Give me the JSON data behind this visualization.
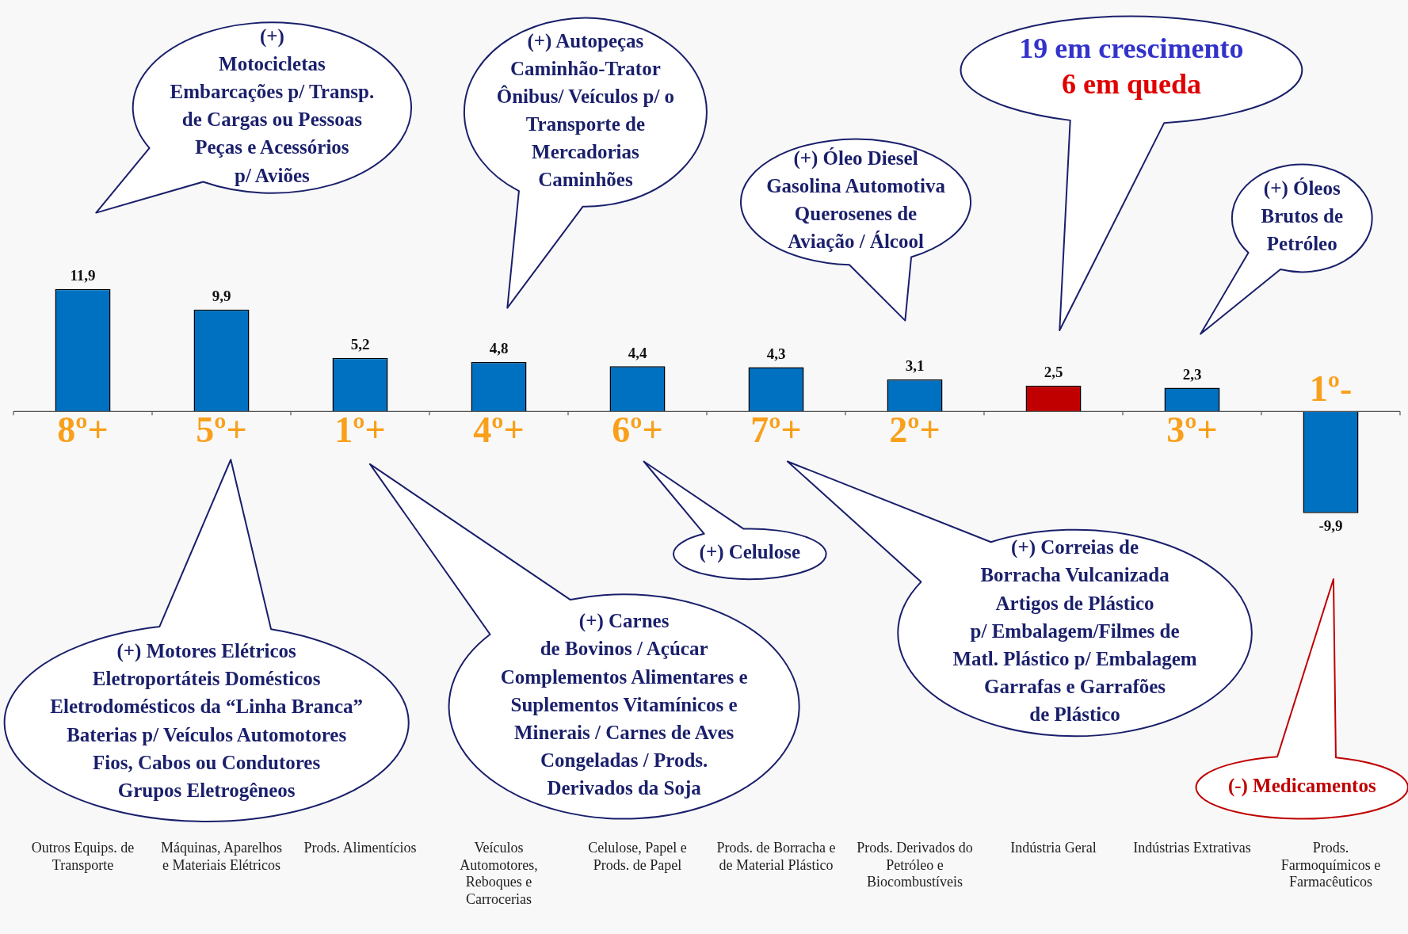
{
  "chart_data": {
    "type": "bar",
    "categories": [
      "Outros Equips. de Transporte",
      "Máquinas, Aparelhos e Materiais Elétricos",
      "Prods. Alimentícios",
      "Veículos Automotores, Reboques e Carrocerias",
      "Celulose, Papel e Prods. de Papel",
      "Prods. de Borracha e de Material Plástico",
      "Prods. Derivados do Petróleo e Biocombustíveis",
      "Indústria Geral",
      "Indústrias Extrativas",
      "Prods. Farmoquímicos e Farmacêuticos"
    ],
    "values": [
      11.9,
      9.9,
      5.2,
      4.8,
      4.4,
      4.3,
      3.1,
      2.5,
      2.3,
      -9.9
    ],
    "value_labels": [
      "11,9",
      "9,9",
      "5,2",
      "4,8",
      "4,4",
      "4,3",
      "3,1",
      "2,5",
      "2,3",
      "-9,9"
    ],
    "colors": [
      "#0070c0",
      "#0070c0",
      "#0070c0",
      "#0070c0",
      "#0070c0",
      "#0070c0",
      "#0070c0",
      "#c00000",
      "#0070c0",
      "#0070c0"
    ],
    "grid": false,
    "legend": false,
    "tick_labels": "x",
    "annotations": [
      "(+)\nMotocicletas\nEmbarcações p/ Transp.\nde Cargas ou Pessoas\nPeças e Acessórios\np/ Aviões",
      "(+) Autopeças\nCaminhão-Trator\nÔnibus/ Veículos p/ o\nTransporte de\nMercadorias\nCaminhões",
      "(+) Óleo Diesel\nGasolina Automotiva\nQuerosenes de\nAviação / Álcool",
      "19 em crescimento",
      "6 em queda",
      "(+) Óleos\nBrutos de\nPetróleo",
      "(+) Motores Elétricos\nEletroportáteis Domésticos\nEletrodomésticos da “Linha Branca”\nBaterias p/ Veículos Automotores\nFios, Cabos ou Condutores\nGrupos Eletrogêneos",
      "(+) Carnes\nde Bovinos / Açúcar\nComplementos Alimentares e\nSuplementos Vitamínicos e\nMinerais / Carnes de Aves\nCongeladas / Prods.\nDerivados da Soja",
      "(+) Celulose",
      "(+) Correias de\nBorracha Vulcanizada\nArtigos de Plástico\np/ Embalagem/Filmes de\nMatl. Plástico p/ Embalagem\nGarrafas e Garrafões\nde Plástico",
      "(-) Medicamentos",
      "8º+",
      "5º+",
      "1º+",
      "4º+",
      "6º+",
      "7º+",
      "2º+",
      "3º+",
      "1º-"
    ]
  }
}
